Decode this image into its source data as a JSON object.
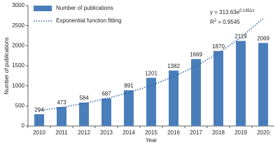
{
  "chart_data": {
    "type": "bar",
    "x_label": "Year",
    "y_label": "Number of publications",
    "categories": [
      "2010",
      "2011",
      "2012",
      "2013",
      "2014",
      "2015",
      "2016",
      "2017",
      "2018",
      "2019",
      "2020"
    ],
    "series": [
      {
        "name": "Number of publications",
        "type": "bar",
        "color": "#4a7ebb",
        "values": [
          294,
          473,
          584,
          687,
          891,
          1201,
          1382,
          1669,
          1870,
          2119,
          2069
        ]
      },
      {
        "name": "Exponential function fitting",
        "type": "line",
        "color": "#2e5fa8",
        "values": [
          381,
          463,
          563,
          684,
          832,
          1011,
          1229,
          1494,
          1816,
          2207,
          2682
        ]
      }
    ],
    "ylim": [
      0,
      3000
    ],
    "yticks": [
      0,
      500,
      1000,
      1500,
      2000,
      2500,
      3000
    ],
    "legend": "top-left",
    "fit_equation": {
      "base": "y = 313.63e",
      "exponent": "0.1951x"
    },
    "r_squared": {
      "base": "R",
      "exponent": "2",
      "rest": " = 0.9545"
    }
  }
}
